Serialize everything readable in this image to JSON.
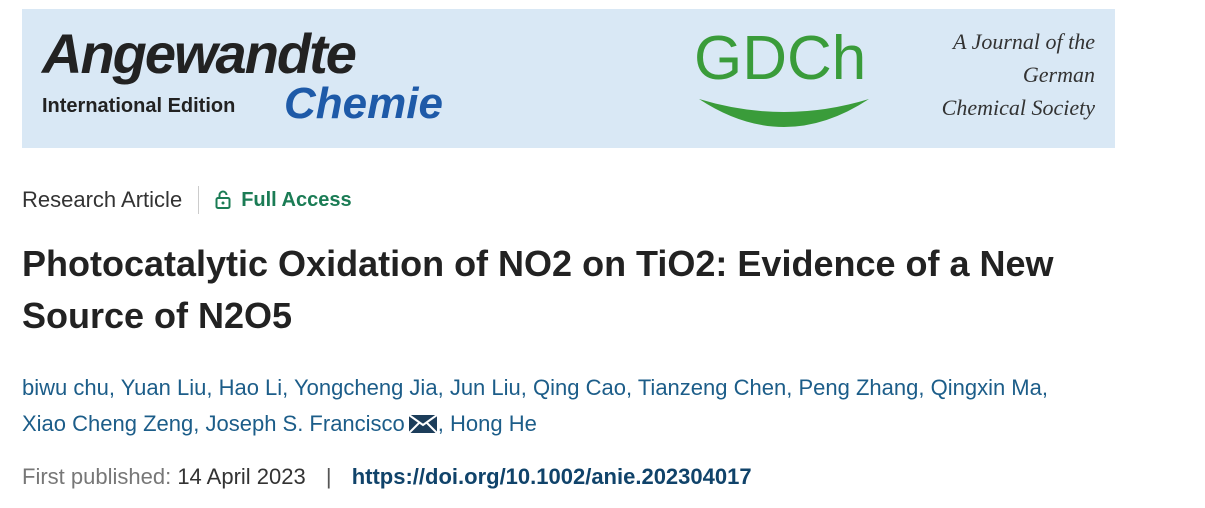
{
  "banner": {
    "journal_name": "Angewandte",
    "edition": "International Edition",
    "journal_name_2": "Chemie",
    "society_logo": "GDCh",
    "society_line_1": "A Journal of the",
    "society_line_2": "German",
    "society_line_3": "Chemical Society"
  },
  "article": {
    "type": "Research Article",
    "access": "Full Access",
    "title": "Photocatalytic Oxidation of NO2 on TiO2: Evidence of a New Source of N2O5",
    "authors": [
      "biwu chu",
      "Yuan Liu",
      "Hao Li",
      "Yongcheng Jia",
      "Jun Liu",
      "Qing Cao",
      "Tianzeng Chen",
      "Peng Zhang",
      "Qingxin Ma",
      "Xiao Cheng Zeng",
      "Joseph S. Francisco",
      "Hong He"
    ],
    "author_separator": ",",
    "corresponding_author_index": 10,
    "published_label": "First published:",
    "published_date": "14 April 2023",
    "divider": "|",
    "doi": "https://doi.org/10.1002/anie.202304017"
  }
}
